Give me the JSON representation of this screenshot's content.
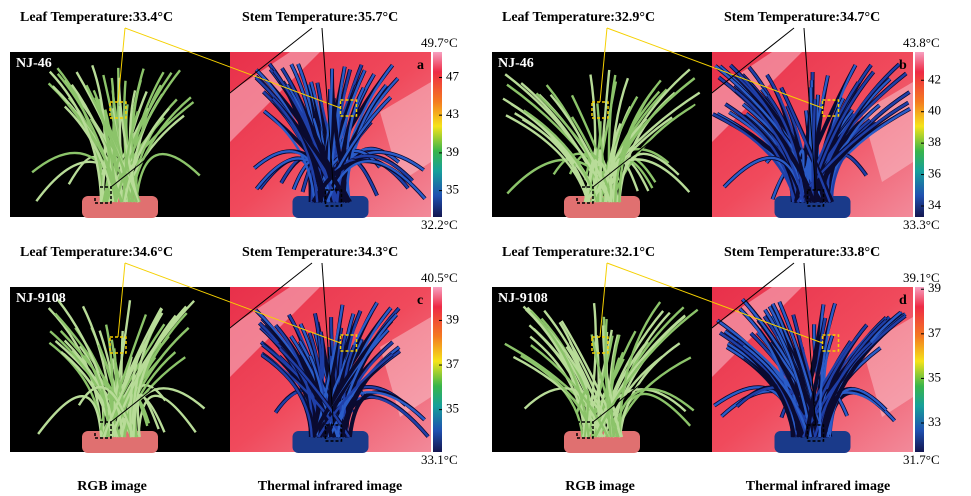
{
  "panels": [
    {
      "variety": "NJ-46",
      "letter": "a",
      "leaf": "Leaf Temperature:33.4°C",
      "stem": "Stem Temperature:35.7°C",
      "colorbar": {
        "max": {
          "value": 49.7,
          "label": "49.7°C"
        },
        "min": {
          "value": 32.2,
          "label": "32.2°C"
        },
        "ticks": [
          47,
          43,
          39,
          35
        ]
      }
    },
    {
      "variety": "NJ-46",
      "letter": "b",
      "leaf": "Leaf Temperature:32.9°C",
      "stem": "Stem Temperature:34.7°C",
      "colorbar": {
        "max": {
          "value": 43.8,
          "label": "43.8°C"
        },
        "min": {
          "value": 33.3,
          "label": "33.3°C"
        },
        "ticks": [
          42,
          40,
          38,
          36,
          34
        ]
      }
    },
    {
      "variety": "NJ-9108",
      "letter": "c",
      "leaf": "Leaf Temperature:34.6°C",
      "stem": "Stem Temperature:34.3°C",
      "colorbar": {
        "max": {
          "value": 40.5,
          "label": "40.5°C"
        },
        "min": {
          "value": 33.1,
          "label": "33.1°C"
        },
        "ticks": [
          39,
          37,
          35
        ]
      }
    },
    {
      "variety": "NJ-9108",
      "letter": "d",
      "leaf": "Leaf Temperature:32.1°C",
      "stem": "Stem Temperature:33.8°C",
      "colorbar": {
        "max": {
          "value": 39.1,
          "label": "39.1°C"
        },
        "min": {
          "value": 31.7,
          "label": "31.7°C"
        },
        "ticks": [
          39,
          37,
          35,
          33
        ]
      }
    }
  ],
  "captions": [
    "RGB image",
    "Thermal infrared image",
    "RGB image",
    "Thermal infrared image"
  ]
}
